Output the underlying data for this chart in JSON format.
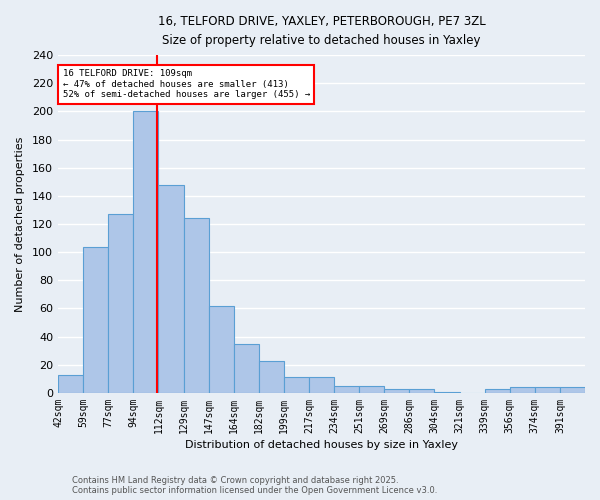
{
  "title_line1": "16, TELFORD DRIVE, YAXLEY, PETERBOROUGH, PE7 3ZL",
  "title_line2": "Size of property relative to detached houses in Yaxley",
  "categories": [
    "42sqm",
    "59sqm",
    "77sqm",
    "94sqm",
    "112sqm",
    "129sqm",
    "147sqm",
    "164sqm",
    "182sqm",
    "199sqm",
    "217sqm",
    "234sqm",
    "251sqm",
    "269sqm",
    "286sqm",
    "304sqm",
    "321sqm",
    "339sqm",
    "356sqm",
    "374sqm",
    "391sqm"
  ],
  "values": [
    13,
    104,
    127,
    200,
    148,
    124,
    62,
    35,
    23,
    11,
    11,
    5,
    5,
    3,
    3,
    1,
    0,
    3,
    4,
    4,
    4
  ],
  "bar_color": "#aec6e8",
  "bar_edge_color": "#5a9fd4",
  "background_color": "#e8eef5",
  "grid_color": "#ffffff",
  "annotation_line1": "16 TELFORD DRIVE: 109sqm",
  "annotation_line2": "← 47% of detached houses are smaller (413)",
  "annotation_line3": "52% of semi-detached houses are larger (455) →",
  "xlabel": "Distribution of detached houses by size in Yaxley",
  "ylabel": "Number of detached properties",
  "ylim": [
    0,
    240
  ],
  "yticks": [
    0,
    20,
    40,
    60,
    80,
    100,
    120,
    140,
    160,
    180,
    200,
    220,
    240
  ],
  "footnote_line1": "Contains HM Land Registry data © Crown copyright and database right 2025.",
  "footnote_line2": "Contains public sector information licensed under the Open Government Licence v3.0."
}
